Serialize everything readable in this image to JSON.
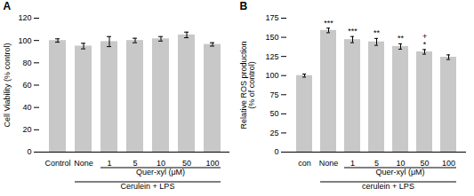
{
  "chart_data": [
    {
      "type": "bar",
      "title": "A",
      "categories": [
        "Control",
        "None",
        "1",
        "5",
        "10",
        "50",
        "100"
      ],
      "values": [
        100,
        95,
        99,
        100,
        101.5,
        105,
        96.5
      ],
      "errors": [
        1.5,
        2.5,
        4.5,
        2.0,
        2.0,
        2.5,
        1.5
      ],
      "ylabel": "Cell Viability (% control)",
      "annotations": [
        {
          "text": "Quer-xyl (μM)",
          "from": "1",
          "to": "100"
        },
        {
          "text": "Cerulein + LPS",
          "from": "None",
          "to": "100"
        }
      ],
      "ylim": [
        0,
        120
      ],
      "yticks": [
        0,
        20,
        40,
        60,
        80,
        100,
        120
      ],
      "color": "#c8c8c8",
      "grid": false
    },
    {
      "type": "bar",
      "title": "B",
      "categories": [
        "con",
        "None",
        "1",
        "5",
        "10",
        "50",
        "100"
      ],
      "values": [
        100,
        159,
        147,
        144,
        138,
        131,
        124
      ],
      "errors": [
        2.0,
        3.0,
        4.0,
        4.5,
        3.5,
        3.0,
        3.0
      ],
      "significance": [
        null,
        "***",
        "***",
        "**",
        "**",
        "+\n*",
        null
      ],
      "ylabel": "Relative ROS production\n(% of control)",
      "annotations": [
        {
          "text": "Quer-xyl (μM)",
          "from": "1",
          "to": "100"
        },
        {
          "text": "cerulein + LPS",
          "from": "None",
          "to": "100"
        }
      ],
      "ylim": [
        0,
        175
      ],
      "yticks": [
        0,
        25,
        50,
        75,
        100,
        125,
        150,
        175
      ],
      "color": "#c8c8c8",
      "grid": false
    }
  ]
}
